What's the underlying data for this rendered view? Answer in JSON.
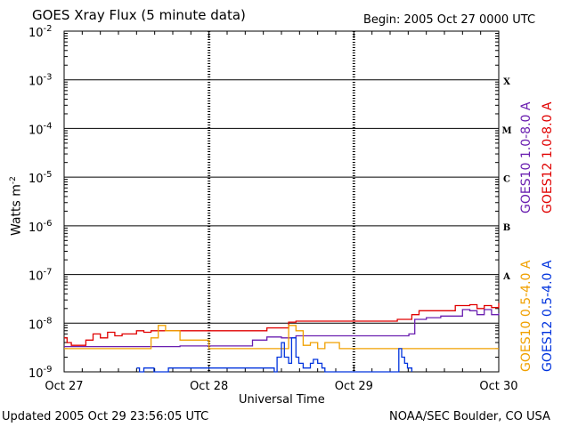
{
  "chart_data": {
    "type": "line",
    "title": "GOES Xray Flux (5 minute data)",
    "begin_label": "Begin:  2005 Oct 27 0000 UTC",
    "xlabel": "Universal Time",
    "ylabel": "Watts m",
    "ylabel_sup": "-2",
    "x_ticks": [
      "Oct 27",
      "Oct 28",
      "Oct 29",
      "Oct 30"
    ],
    "x_range_days": [
      0,
      3
    ],
    "y_scale": "log",
    "ylim": [
      1e-09,
      0.01
    ],
    "y_ticks": [
      {
        "base": "10",
        "exp": "-9"
      },
      {
        "base": "10",
        "exp": "-8"
      },
      {
        "base": "10",
        "exp": "-7"
      },
      {
        "base": "10",
        "exp": "-6"
      },
      {
        "base": "10",
        "exp": "-5"
      },
      {
        "base": "10",
        "exp": "-4"
      },
      {
        "base": "10",
        "exp": "-3"
      },
      {
        "base": "10",
        "exp": "-2"
      }
    ],
    "flare_classes": [
      "A",
      "B",
      "C",
      "M",
      "X"
    ],
    "series": [
      {
        "name": "GOES12 1.0-8.0 A",
        "color": "#e00000",
        "x": [
          0.0,
          0.02,
          0.05,
          0.1,
          0.15,
          0.2,
          0.25,
          0.3,
          0.35,
          0.4,
          0.45,
          0.5,
          0.55,
          0.6,
          0.7,
          0.8,
          0.9,
          1.0,
          1.1,
          1.2,
          1.3,
          1.4,
          1.5,
          1.55,
          1.6,
          1.7,
          1.8,
          1.9,
          2.0,
          2.1,
          2.2,
          2.3,
          2.4,
          2.45,
          2.5,
          2.6,
          2.7,
          2.8,
          2.85,
          2.9,
          2.95,
          3.0
        ],
        "y": [
          5e-09,
          4e-09,
          3.5e-09,
          3.5e-09,
          4.5e-09,
          6e-09,
          5e-09,
          6.5e-09,
          5.5e-09,
          6e-09,
          6e-09,
          7e-09,
          6.5e-09,
          7e-09,
          7e-09,
          7e-09,
          7e-09,
          7e-09,
          7e-09,
          7e-09,
          7e-09,
          8e-09,
          8e-09,
          1.05e-08,
          1.1e-08,
          1.1e-08,
          1.1e-08,
          1.1e-08,
          1.1e-08,
          1.1e-08,
          1.1e-08,
          1.2e-08,
          1.5e-08,
          1.8e-08,
          1.8e-08,
          1.8e-08,
          2.3e-08,
          2.4e-08,
          2e-08,
          2.3e-08,
          2.1e-08,
          2.6e-08
        ]
      },
      {
        "name": "GOES10 1.0-8.0 A",
        "color": "#6a1fb0",
        "x": [
          0.0,
          0.05,
          0.1,
          0.3,
          0.5,
          0.7,
          0.8,
          0.9,
          1.0,
          1.2,
          1.3,
          1.4,
          1.5,
          1.6,
          1.7,
          1.8,
          1.9,
          2.0,
          2.1,
          2.2,
          2.3,
          2.38,
          2.42,
          2.5,
          2.6,
          2.7,
          2.75,
          2.8,
          2.85,
          2.9,
          2.95,
          3.0
        ],
        "y": [
          3.3e-09,
          3.3e-09,
          3.3e-09,
          3.3e-09,
          3.3e-09,
          3.3e-09,
          3.4e-09,
          3.4e-09,
          3.4e-09,
          3.4e-09,
          4.5e-09,
          5.2e-09,
          5e-09,
          5.5e-09,
          5.5e-09,
          5.5e-09,
          5.5e-09,
          5.5e-09,
          5.5e-09,
          5.5e-09,
          5.5e-09,
          6e-09,
          1.2e-08,
          1.3e-08,
          1.4e-08,
          1.4e-08,
          1.9e-08,
          1.8e-08,
          1.5e-08,
          1.9e-08,
          1.5e-08,
          1.6e-08
        ]
      },
      {
        "name": "GOES10 0.5-4.0 A",
        "color": "#f0a000",
        "x": [
          0.0,
          0.3,
          0.5,
          0.6,
          0.65,
          0.7,
          0.8,
          0.9,
          1.0,
          1.1,
          1.2,
          1.3,
          1.4,
          1.5,
          1.55,
          1.6,
          1.65,
          1.7,
          1.75,
          1.8,
          1.9,
          2.0,
          2.2,
          2.4,
          2.6,
          2.8,
          3.0
        ],
        "y": [
          3e-09,
          3e-09,
          3e-09,
          5e-09,
          9e-09,
          7e-09,
          4.5e-09,
          4.5e-09,
          3e-09,
          3e-09,
          3e-09,
          3e-09,
          3e-09,
          3e-09,
          9e-09,
          7e-09,
          3.5e-09,
          4e-09,
          3e-09,
          4e-09,
          3e-09,
          3e-09,
          3e-09,
          3e-09,
          3e-09,
          3e-09,
          3e-09
        ]
      },
      {
        "name": "GOES12 0.5-4.0 A",
        "color": "#0033dd",
        "x": [
          0.5,
          0.52,
          0.55,
          0.57,
          0.6,
          0.62,
          0.7,
          0.72,
          0.75,
          1.45,
          1.47,
          1.5,
          1.52,
          1.55,
          1.57,
          1.6,
          1.62,
          1.65,
          1.7,
          1.72,
          1.75,
          1.78,
          1.8,
          2.3,
          2.31,
          2.33,
          2.35,
          2.37,
          2.4
        ],
        "y": [
          1.2e-09,
          1e-09,
          1.2e-09,
          1.2e-09,
          1.2e-09,
          1e-09,
          1e-09,
          1.2e-09,
          1.2e-09,
          1e-09,
          2e-09,
          4e-09,
          2e-09,
          1.5e-09,
          5e-09,
          2e-09,
          1.5e-09,
          1.2e-09,
          1.5e-09,
          1.8e-09,
          1.5e-09,
          1.2e-09,
          1e-09,
          1e-09,
          3e-09,
          2e-09,
          1.5e-09,
          1.2e-09,
          1e-09
        ]
      }
    ]
  },
  "footer": {
    "updated": "Updated 2005 Oct 29 23:56:05 UTC",
    "source": "NOAA/SEC Boulder, CO USA"
  }
}
